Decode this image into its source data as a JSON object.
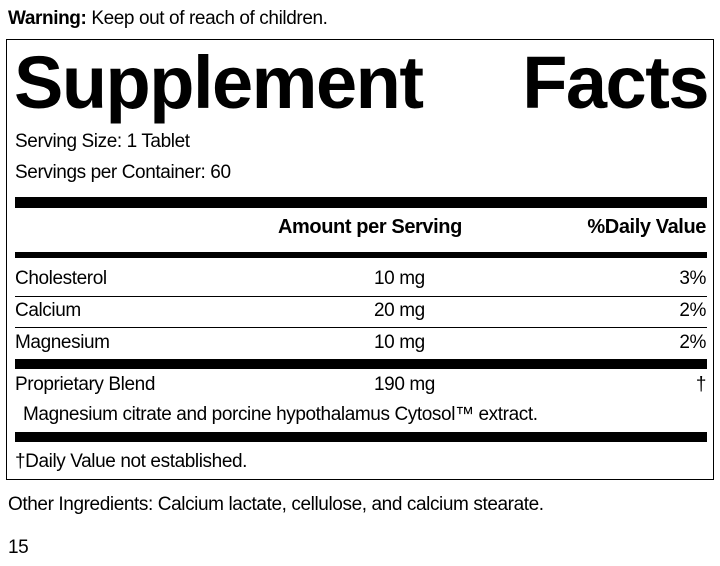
{
  "warning": {
    "label": "Warning:",
    "text": "Keep out of reach of children."
  },
  "title": {
    "word1": "Supplement",
    "word2": "Facts"
  },
  "serving_size": "Serving Size: 1 Tablet",
  "servings_per_container": "Servings per Container: 60",
  "headers": {
    "amount": "Amount per Serving",
    "dv": "%Daily Value"
  },
  "rows": [
    {
      "name": "Cholesterol",
      "amount": "10 mg",
      "dv": "3%"
    },
    {
      "name": "Calcium",
      "amount": "20 mg",
      "dv": "2%"
    },
    {
      "name": "Magnesium",
      "amount": "10 mg",
      "dv": "2%"
    },
    {
      "name": "Proprietary Blend",
      "amount": "190 mg",
      "dv": "†"
    }
  ],
  "blend_description": "Magnesium citrate and porcine hypothalamus Cytosol™ extract.",
  "footnote": "†Daily Value not established.",
  "other_ingredients": "Other Ingredients: Calcium lactate, cellulose, and calcium stearate.",
  "page_number": "15"
}
